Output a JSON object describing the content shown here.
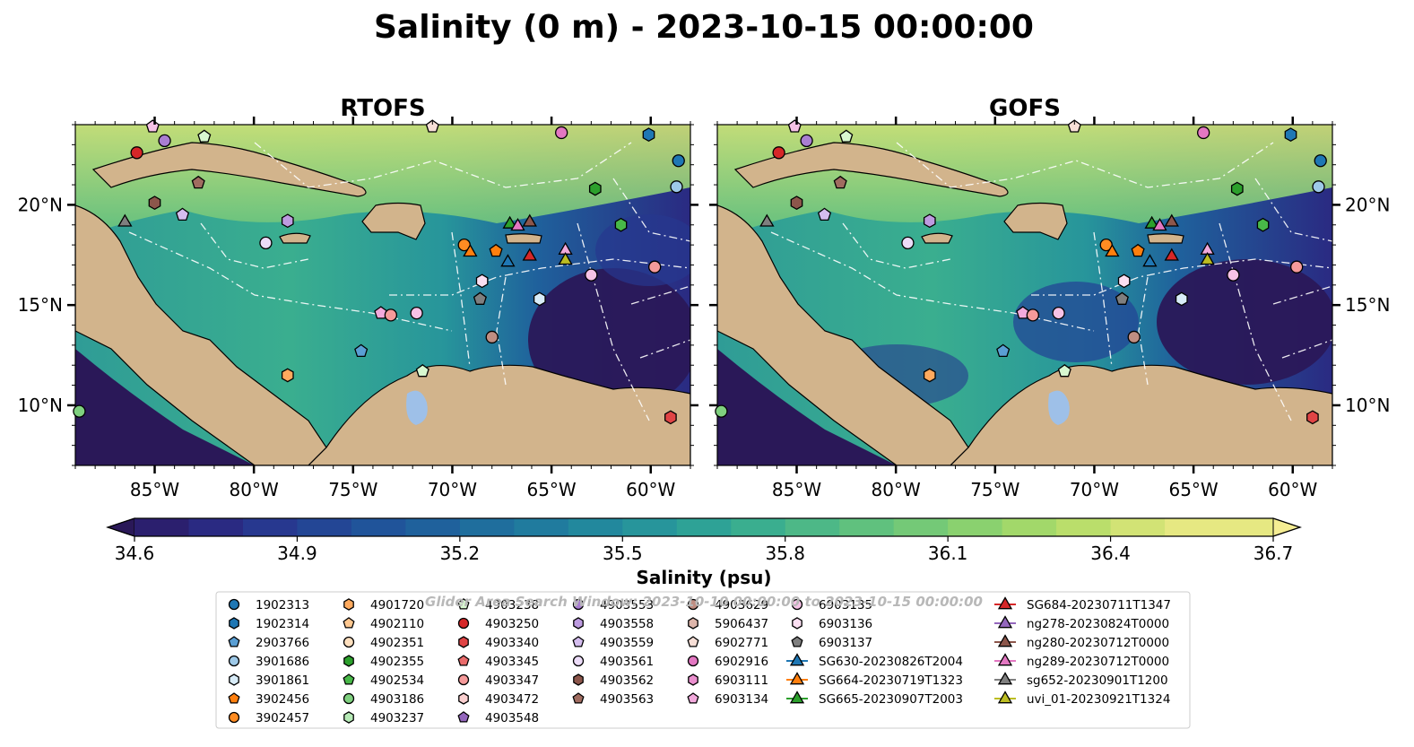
{
  "title": "Salinity (0 m) - 2023-10-15 00:00:00",
  "panels": [
    {
      "name": "RTOFS"
    },
    {
      "name": "GOFS"
    }
  ],
  "map_extent": {
    "lon": [
      -89,
      -58
    ],
    "lat": [
      7,
      24
    ]
  },
  "lon_ticks": [
    {
      "value": -85,
      "label": "85°W"
    },
    {
      "value": -80,
      "label": "80°W"
    },
    {
      "value": -75,
      "label": "75°W"
    },
    {
      "value": -70,
      "label": "70°W"
    },
    {
      "value": -65,
      "label": "65°W"
    },
    {
      "value": -60,
      "label": "60°W"
    }
  ],
  "lat_ticks": [
    {
      "value": 20,
      "label": "20°N"
    },
    {
      "value": 15,
      "label": "15°N"
    },
    {
      "value": 10,
      "label": "10°N"
    }
  ],
  "colorbar": {
    "label": "Salinity (psu)",
    "min": 34.6,
    "max": 36.7,
    "step": 0.1,
    "ticks": [
      "34.6",
      "34.9",
      "35.2",
      "35.5",
      "35.8",
      "36.1",
      "36.4",
      "36.7"
    ],
    "colors": [
      "#2a1858",
      "#2b1f6e",
      "#2a2a82",
      "#27388f",
      "#234695",
      "#20549a",
      "#1f619c",
      "#1f6e9d",
      "#207b9e",
      "#22889d",
      "#27959b",
      "#2ea296",
      "#3aae8f",
      "#4db887",
      "#60c17e",
      "#74c977",
      "#8ad16f",
      "#a2d86a",
      "#bade6b",
      "#d2e375",
      "#e6e882",
      "#f5ed93"
    ]
  },
  "watermark": "Glider Area Search Window: 2023-10-10 00:00:00 to 2023-10-15 00:00:00",
  "legend": {
    "columns": [
      [
        {
          "label": "1902313",
          "marker": "circle",
          "color": "#1f77b4"
        },
        {
          "label": "1902314",
          "marker": "hexagon",
          "color": "#1f77b4"
        },
        {
          "label": "2903766",
          "marker": "pentagon",
          "color": "#5a9fd4"
        },
        {
          "label": "3901686",
          "marker": "circle",
          "color": "#9ec9e8"
        },
        {
          "label": "3901861",
          "marker": "hexagon",
          "color": "#d8ecf8"
        },
        {
          "label": "3902456",
          "marker": "pentagon",
          "color": "#ff7f0e"
        },
        {
          "label": "3902457",
          "marker": "circle",
          "color": "#ff8c22"
        }
      ],
      [
        {
          "label": "4901720",
          "marker": "hexagon",
          "color": "#ffaa5e"
        },
        {
          "label": "4902110",
          "marker": "pentagon",
          "color": "#ffc890"
        },
        {
          "label": "4902351",
          "marker": "circle",
          "color": "#ffe0bf"
        },
        {
          "label": "4902355",
          "marker": "hexagon",
          "color": "#2ca02c"
        },
        {
          "label": "4902534",
          "marker": "pentagon",
          "color": "#48b848"
        },
        {
          "label": "4903186",
          "marker": "circle",
          "color": "#7fd07f"
        },
        {
          "label": "4903237",
          "marker": "hexagon",
          "color": "#b6eab6"
        }
      ],
      [
        {
          "label": "4903238",
          "marker": "pentagon",
          "color": "#d8f8d0"
        },
        {
          "label": "4903250",
          "marker": "circle",
          "color": "#d62728"
        },
        {
          "label": "4903340",
          "marker": "hexagon",
          "color": "#e04445"
        },
        {
          "label": "4903345",
          "marker": "pentagon",
          "color": "#ea6b6b"
        },
        {
          "label": "4903347",
          "marker": "circle",
          "color": "#f59a9a"
        },
        {
          "label": "4903472",
          "marker": "hexagon",
          "color": "#fbd0d0"
        },
        {
          "label": "4903548",
          "marker": "pentagon",
          "color": "#9467bd"
        }
      ],
      [
        {
          "label": "4903553",
          "marker": "circle",
          "color": "#a97ed1"
        },
        {
          "label": "4903558",
          "marker": "hexagon",
          "color": "#bd9be0"
        },
        {
          "label": "4903559",
          "marker": "pentagon",
          "color": "#d4bdee"
        },
        {
          "label": "4903561",
          "marker": "circle",
          "color": "#ecdcf8"
        },
        {
          "label": "4903562",
          "marker": "hexagon",
          "color": "#8c564b"
        },
        {
          "label": "4903563",
          "marker": "pentagon",
          "color": "#a06c60"
        }
      ],
      [
        {
          "label": "4903629",
          "marker": "circle",
          "color": "#c08e82"
        },
        {
          "label": "5906437",
          "marker": "hexagon",
          "color": "#deb6ab"
        },
        {
          "label": "6902771",
          "marker": "pentagon",
          "color": "#f7dfd7"
        },
        {
          "label": "6902916",
          "marker": "circle",
          "color": "#e377c2"
        },
        {
          "label": "6903111",
          "marker": "hexagon",
          "color": "#ea8fce"
        },
        {
          "label": "6903134",
          "marker": "pentagon",
          "color": "#f2a9dc"
        }
      ],
      [
        {
          "label": "6903135",
          "marker": "circle",
          "color": "#f6c2e6"
        },
        {
          "label": "6903136",
          "marker": "hexagon",
          "color": "#fbdff2"
        },
        {
          "label": "6903137",
          "marker": "pentagon",
          "color": "#7f7f7f"
        },
        {
          "label": "SG630-20230826T2004",
          "marker": "triangle-line",
          "color": "#1f77b4"
        },
        {
          "label": "SG664-20230719T1323",
          "marker": "triangle-line",
          "color": "#ff7f0e"
        },
        {
          "label": "SG665-20230907T2003",
          "marker": "triangle-line",
          "color": "#2ca02c"
        }
      ],
      [
        {
          "label": "SG684-20230711T1347",
          "marker": "triangle-line",
          "color": "#d62728"
        },
        {
          "label": "ng278-20230824T0000",
          "marker": "triangle-line",
          "color": "#9467bd"
        },
        {
          "label": "ng280-20230712T0000",
          "marker": "triangle-line",
          "color": "#8c564b"
        },
        {
          "label": "ng289-20230712T0000",
          "marker": "triangle-line",
          "color": "#e377c2"
        },
        {
          "label": "sg652-20230901T1200",
          "marker": "triangle-line",
          "color": "#7f7f7f"
        },
        {
          "label": "uvi_01-20230921T1324",
          "marker": "triangle-line",
          "color": "#bcbd22"
        }
      ]
    ]
  },
  "markers": [
    {
      "lon": -85.9,
      "lat": 22.6,
      "marker": "circle",
      "color": "#d62728"
    },
    {
      "lon": -85.1,
      "lat": 23.9,
      "marker": "pentagon",
      "color": "#f6c2e6"
    },
    {
      "lon": -84.5,
      "lat": 23.2,
      "marker": "circle",
      "color": "#a97ed1"
    },
    {
      "lon": -82.5,
      "lat": 23.4,
      "marker": "pentagon",
      "color": "#d8f8d0"
    },
    {
      "lon": -82.8,
      "lat": 21.1,
      "marker": "pentagon",
      "color": "#a06c60"
    },
    {
      "lon": -85.0,
      "lat": 20.1,
      "marker": "hexagon",
      "color": "#8c564b"
    },
    {
      "lon": -86.5,
      "lat": 19.2,
      "marker": "triangle",
      "color": "#7f7f7f"
    },
    {
      "lon": -83.6,
      "lat": 19.5,
      "marker": "pentagon",
      "color": "#d4bdee"
    },
    {
      "lon": -78.3,
      "lat": 19.2,
      "marker": "hexagon",
      "color": "#bd9be0"
    },
    {
      "lon": -79.4,
      "lat": 18.1,
      "marker": "circle",
      "color": "#ecdcf8"
    },
    {
      "lon": -71.0,
      "lat": 23.9,
      "marker": "pentagon",
      "color": "#f7dfd7"
    },
    {
      "lon": -64.5,
      "lat": 23.6,
      "marker": "circle",
      "color": "#e377c2"
    },
    {
      "lon": -60.1,
      "lat": 23.5,
      "marker": "hexagon",
      "color": "#1f77b4"
    },
    {
      "lon": -58.6,
      "lat": 22.2,
      "marker": "circle",
      "color": "#1f77b4"
    },
    {
      "lon": -58.7,
      "lat": 20.9,
      "marker": "circle",
      "color": "#9ec9e8"
    },
    {
      "lon": -62.8,
      "lat": 20.8,
      "marker": "hexagon",
      "color": "#2ca02c"
    },
    {
      "lon": -61.5,
      "lat": 19.0,
      "marker": "hexagon",
      "color": "#48b848"
    },
    {
      "lon": -59.8,
      "lat": 16.9,
      "marker": "circle",
      "color": "#f59a9a"
    },
    {
      "lon": -69.4,
      "lat": 18.0,
      "marker": "circle",
      "color": "#ff8c22"
    },
    {
      "lon": -69.1,
      "lat": 17.7,
      "marker": "triangle",
      "color": "#ff7f0e"
    },
    {
      "lon": -67.8,
      "lat": 17.7,
      "marker": "pentagon",
      "color": "#ff7f0e"
    },
    {
      "lon": -67.1,
      "lat": 19.1,
      "marker": "triangle",
      "color": "#2ca02c"
    },
    {
      "lon": -66.7,
      "lat": 19.0,
      "marker": "triangle",
      "color": "#e377c2"
    },
    {
      "lon": -66.1,
      "lat": 19.2,
      "marker": "triangle",
      "color": "#8c564b"
    },
    {
      "lon": -67.2,
      "lat": 17.2,
      "marker": "triangle",
      "color": "#1f77b4"
    },
    {
      "lon": -66.1,
      "lat": 17.5,
      "marker": "triangle",
      "color": "#d62728"
    },
    {
      "lon": -64.3,
      "lat": 17.8,
      "marker": "triangle",
      "color": "#f2a9dc"
    },
    {
      "lon": -64.3,
      "lat": 17.3,
      "marker": "triangle",
      "color": "#bcbd22"
    },
    {
      "lon": -63.0,
      "lat": 16.5,
      "marker": "circle",
      "color": "#f6c2e6"
    },
    {
      "lon": -68.5,
      "lat": 16.2,
      "marker": "hexagon",
      "color": "#fbdff2"
    },
    {
      "lon": -68.6,
      "lat": 15.3,
      "marker": "pentagon",
      "color": "#7f7f7f"
    },
    {
      "lon": -65.6,
      "lat": 15.3,
      "marker": "hexagon",
      "color": "#d8ecf8"
    },
    {
      "lon": -73.6,
      "lat": 14.6,
      "marker": "pentagon",
      "color": "#f2a9dc"
    },
    {
      "lon": -73.1,
      "lat": 14.5,
      "marker": "circle",
      "color": "#f59a9a"
    },
    {
      "lon": -71.8,
      "lat": 14.6,
      "marker": "circle",
      "color": "#f6c2e6"
    },
    {
      "lon": -68.0,
      "lat": 13.4,
      "marker": "circle",
      "color": "#c08e82"
    },
    {
      "lon": -74.6,
      "lat": 12.7,
      "marker": "pentagon",
      "color": "#5a9fd4"
    },
    {
      "lon": -78.3,
      "lat": 11.5,
      "marker": "hexagon",
      "color": "#ffaa5e"
    },
    {
      "lon": -71.5,
      "lat": 11.7,
      "marker": "pentagon",
      "color": "#d8f8d0"
    },
    {
      "lon": -88.8,
      "lat": 9.7,
      "marker": "circle",
      "color": "#7fd07f"
    },
    {
      "lon": -59.0,
      "lat": 9.4,
      "marker": "hexagon",
      "color": "#e04445"
    }
  ]
}
